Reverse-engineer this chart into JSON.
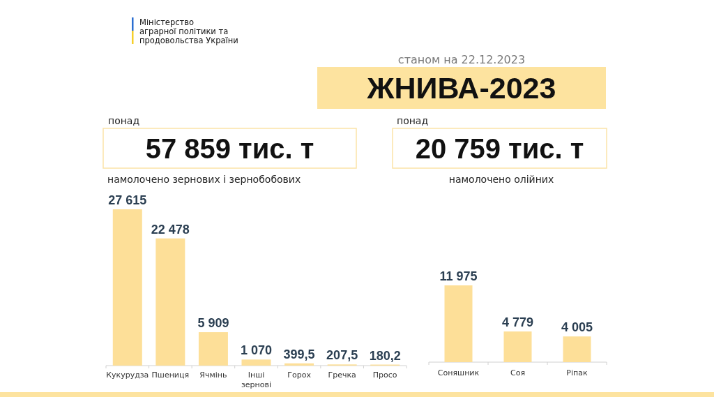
{
  "chart_data": [
    {
      "type": "bar",
      "title": "ЖНИВА-2023",
      "subtitle": "станом на 22.12.2023",
      "annotations": [
        "понад",
        "57 859 тис. т",
        "намолочено зернових і зернобобових",
        "Міністерство\nаграрної політики та\nпродовольства України"
      ],
      "categories": [
        "Кукурудза",
        "Пшениця",
        "Ячмінь",
        "Інші зернові",
        "Горох",
        "Гречка",
        "Просо"
      ],
      "values": [
        27615,
        22478,
        5909,
        1070,
        399.5,
        207.5,
        180.2
      ],
      "value_labels": [
        "27 615",
        "22 478",
        "5 909",
        "1 070",
        "399,5",
        "207,5",
        "180,2"
      ],
      "color": "#fddf98"
    },
    {
      "type": "bar",
      "annotations": [
        "понад",
        "20 759 тис. т",
        "намолочено олійних"
      ],
      "categories": [
        "Соняшник",
        "Соя",
        "Ріпак"
      ],
      "values": [
        11975,
        4779,
        4005
      ],
      "value_labels": [
        "11 975",
        "4 779",
        "4 005"
      ],
      "color": "#fddf98"
    }
  ]
}
